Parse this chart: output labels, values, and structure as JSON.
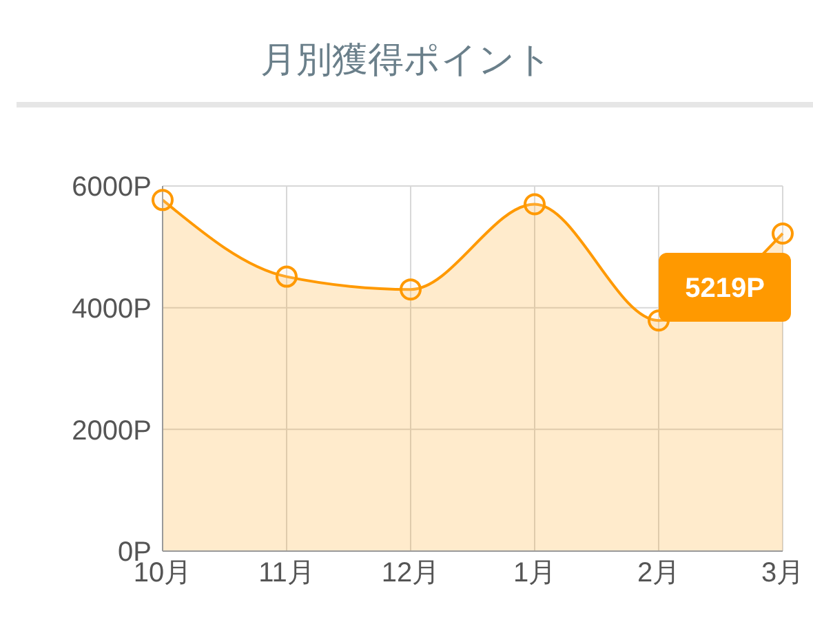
{
  "chart_data": {
    "type": "area",
    "title": "月別獲得ポイント",
    "categories": [
      "10月",
      "11月",
      "12月",
      "1月",
      "2月",
      "3月"
    ],
    "series": [
      {
        "color": "#ff9900",
        "values": [
          5770,
          4510,
          4300,
          5700,
          3790,
          5219
        ],
        "value_labels": [
          null,
          null,
          null,
          null,
          null,
          "5219P"
        ]
      }
    ],
    "ylim": [
      0,
      6000
    ],
    "yticks": [
      {
        "value": 0,
        "label": "0P"
      },
      {
        "value": 2000,
        "label": "2000P"
      },
      {
        "value": 4000,
        "label": "4000P"
      },
      {
        "value": 6000,
        "label": "6000P"
      }
    ],
    "grid": true,
    "marker": "circle",
    "legend": false
  }
}
